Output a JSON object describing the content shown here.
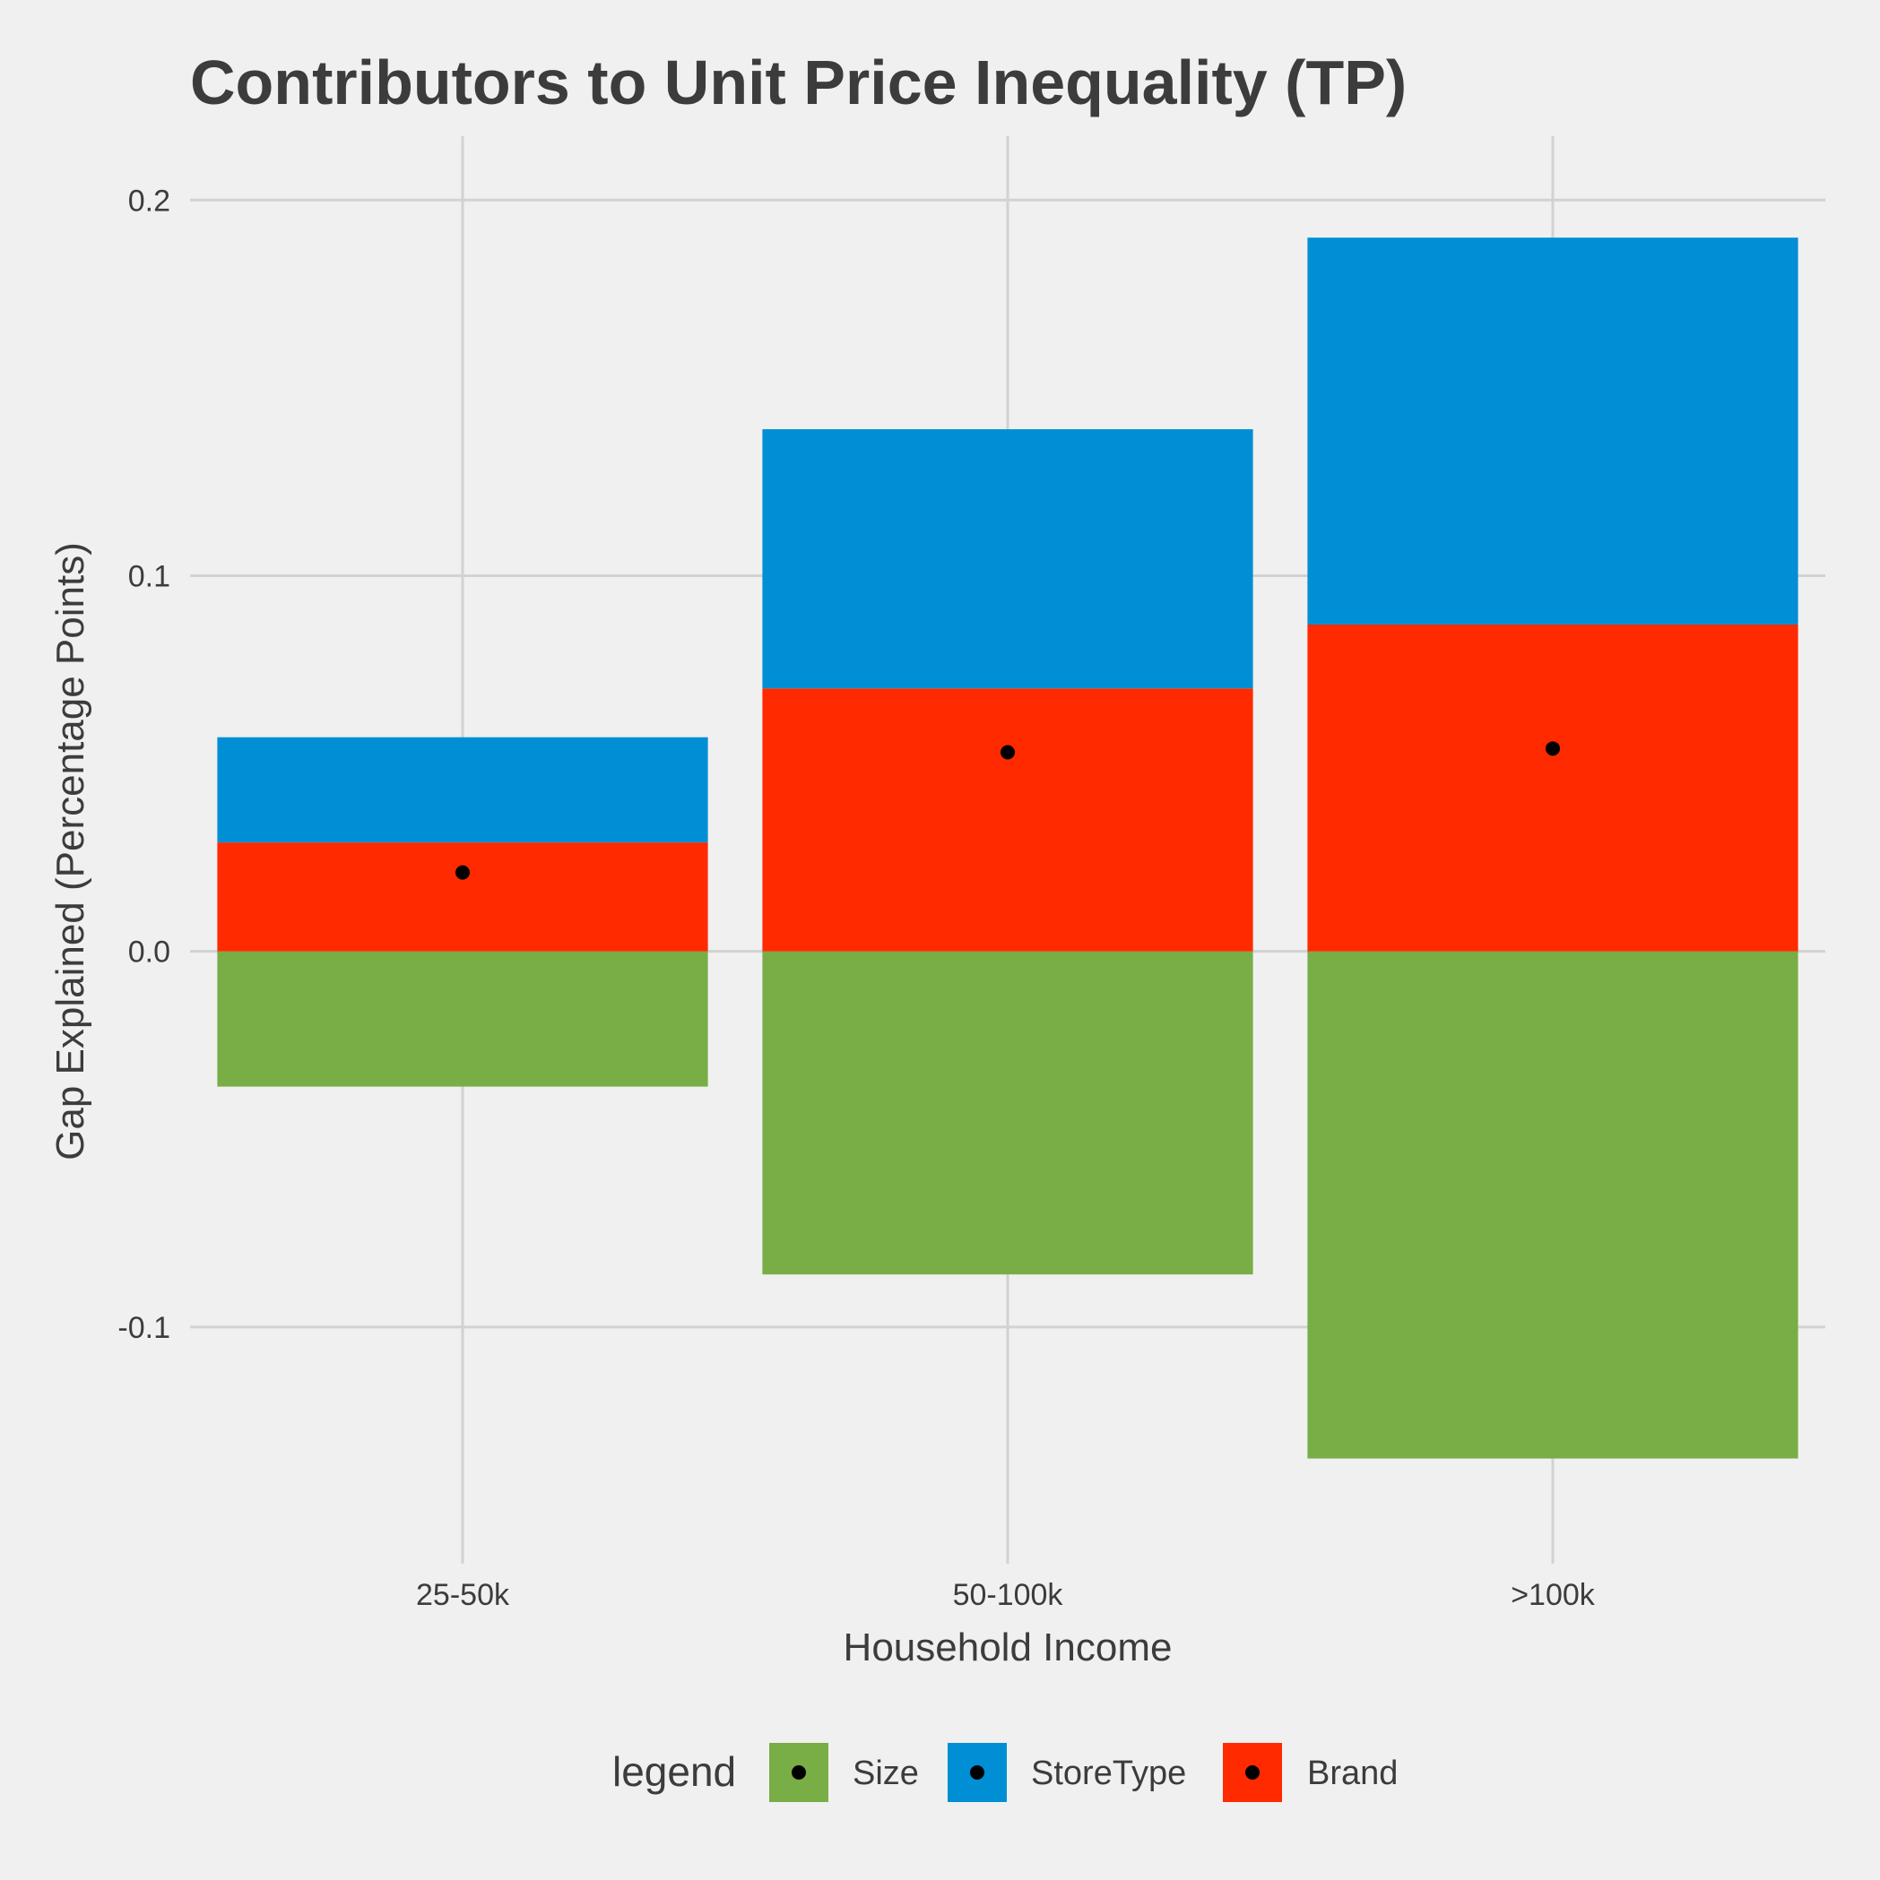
{
  "chart_data": {
    "type": "bar",
    "stacked": true,
    "title": "Contributors to Unit Price Inequality (TP)",
    "xlabel": "Household Income",
    "ylabel": "Gap Explained (Percentage Points)",
    "categories": [
      "25-50k",
      "50-100k",
      ">100k"
    ],
    "ylim": [
      -0.163,
      0.217
    ],
    "yticks": [
      -0.1,
      0.0,
      0.1,
      0.2
    ],
    "ytick_labels": [
      "-0.1",
      "0.0",
      "0.1",
      "0.2"
    ],
    "grid": true,
    "series": [
      {
        "name": "Size",
        "color": "#79ad45",
        "values": [
          -0.036,
          -0.086,
          -0.135
        ]
      },
      {
        "name": "Brand",
        "color": "#ff2a00",
        "values": [
          0.029,
          0.07,
          0.087
        ]
      },
      {
        "name": "StoreType",
        "color": "#008fd5",
        "values": [
          0.028,
          0.069,
          0.103
        ]
      }
    ],
    "points": {
      "color": "#000000",
      "values": [
        0.021,
        0.053,
        0.054
      ]
    },
    "legend": {
      "title": "legend",
      "position": "bottom",
      "entries": [
        {
          "label": "Size",
          "color": "#79ad45"
        },
        {
          "label": "StoreType",
          "color": "#008fd5"
        },
        {
          "label": "Brand",
          "color": "#ff2a00"
        }
      ]
    }
  }
}
